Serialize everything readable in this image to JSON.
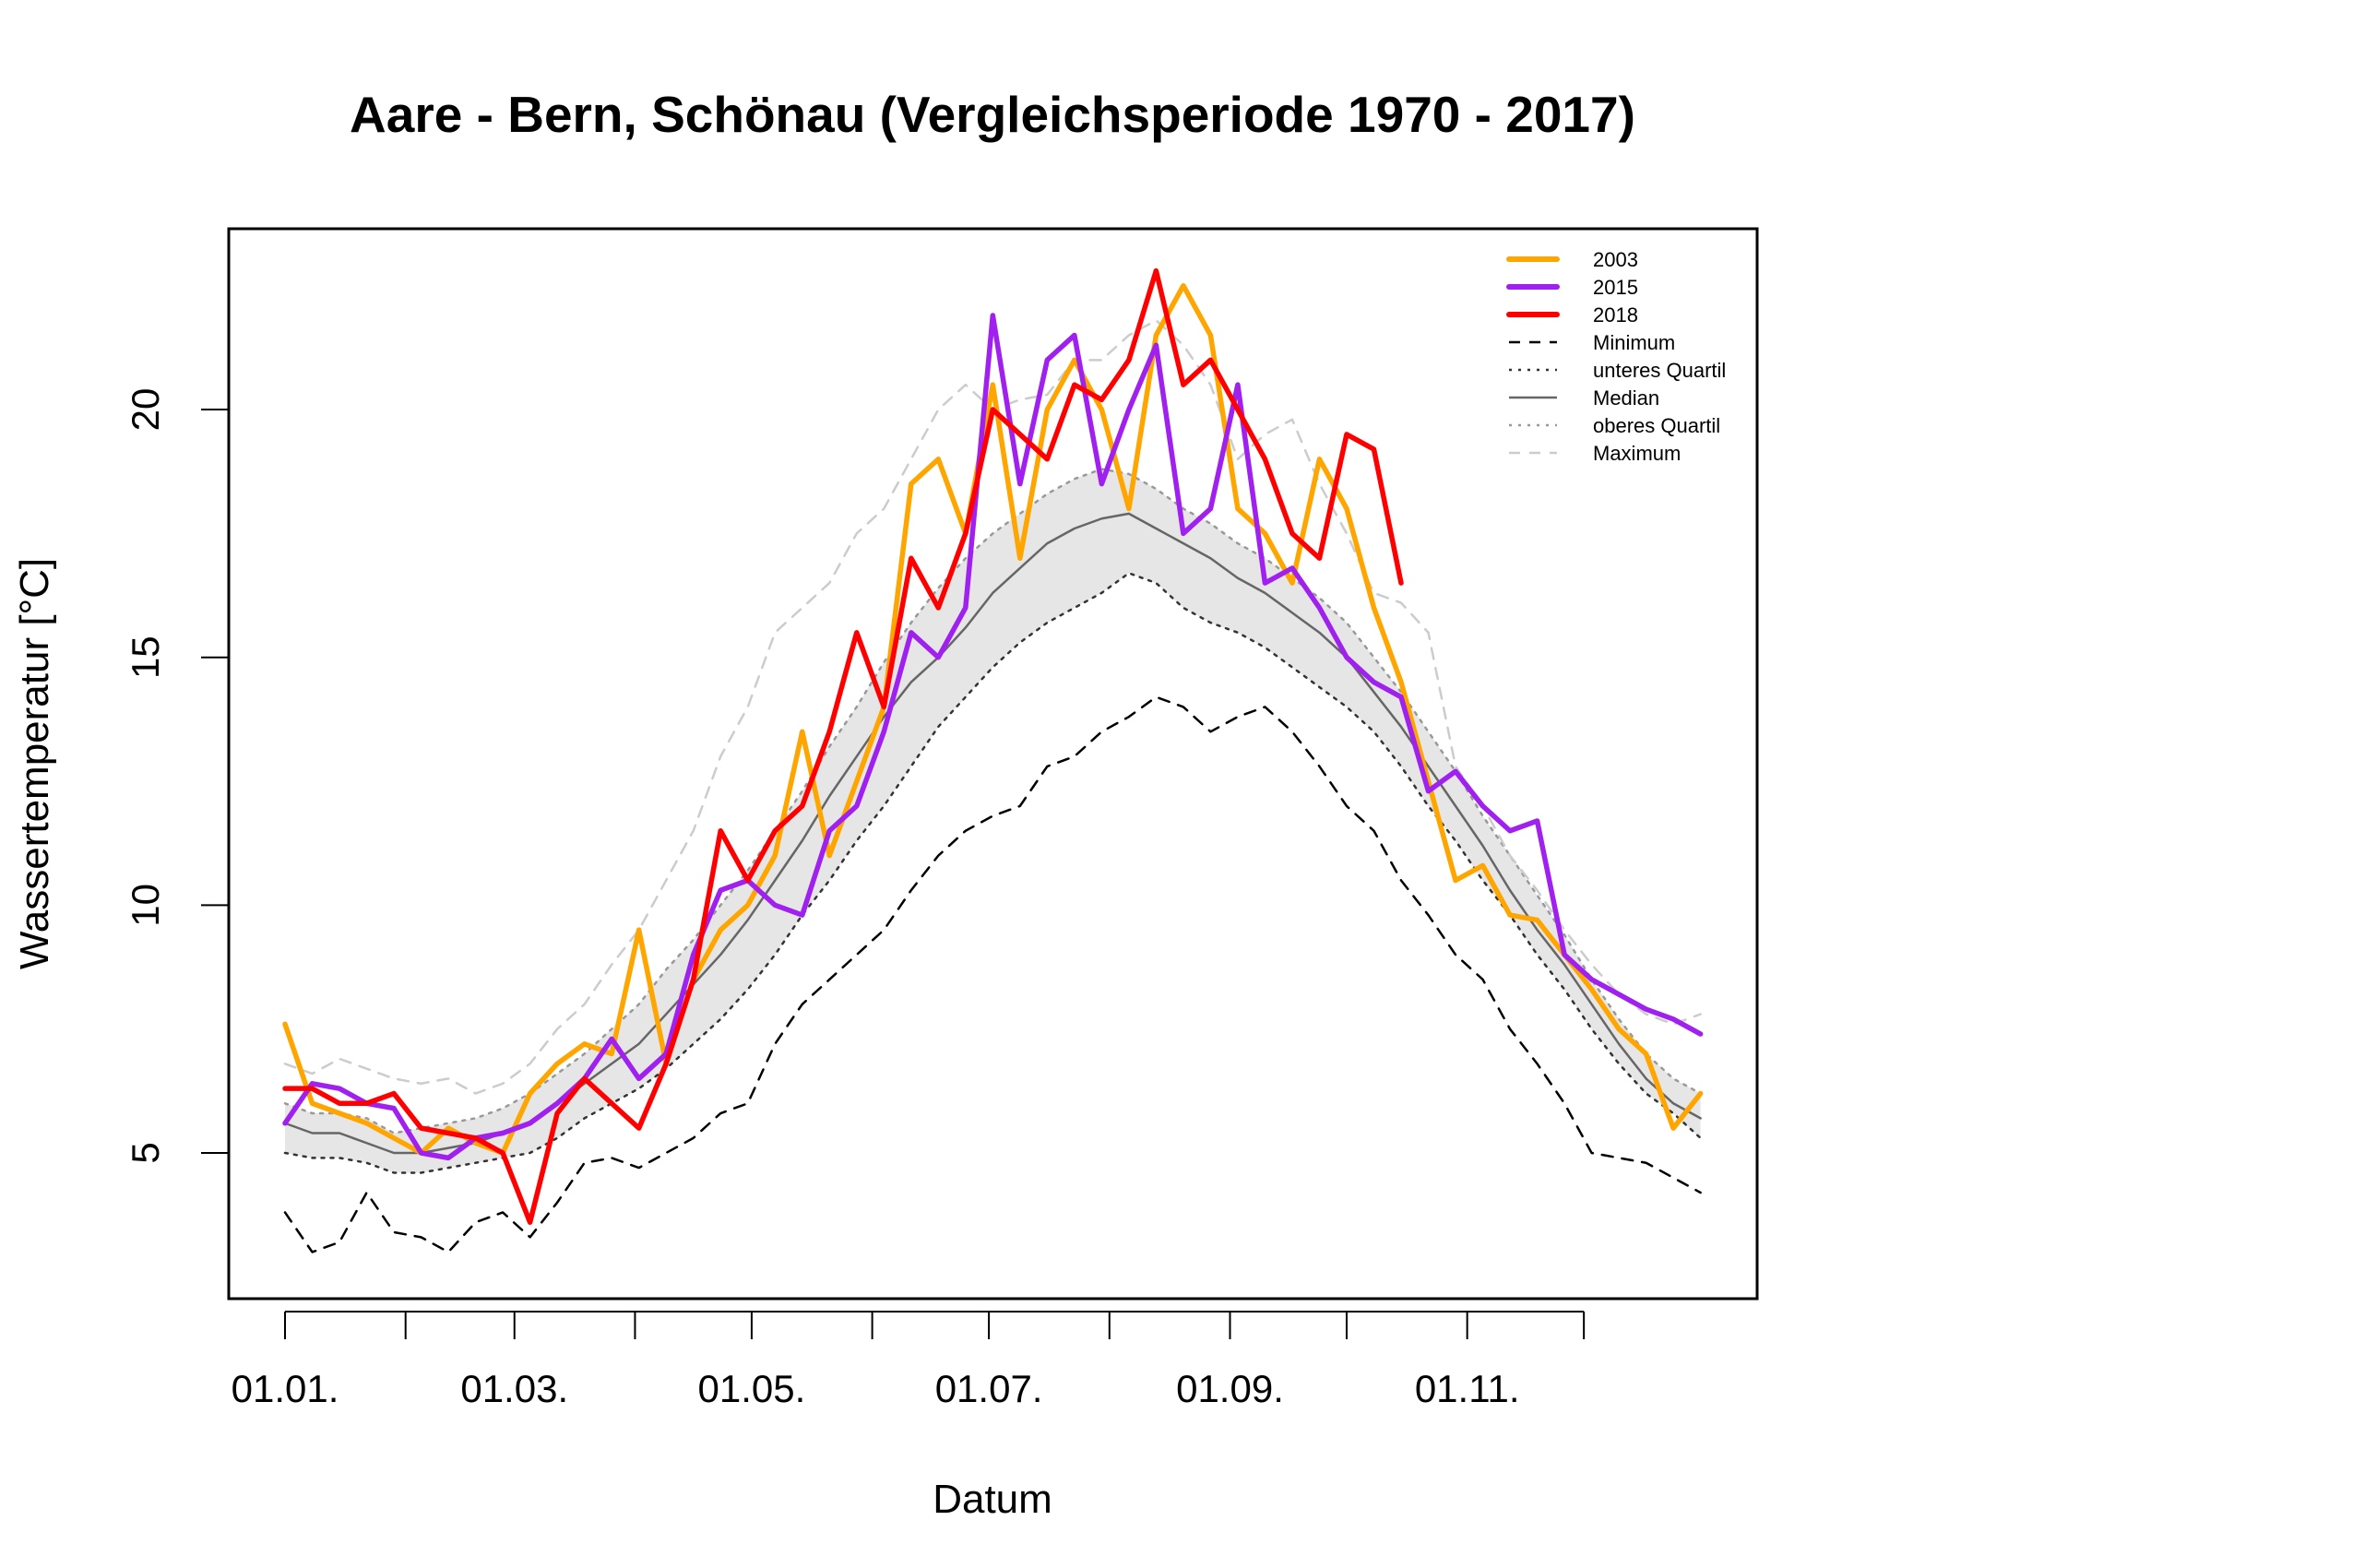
{
  "chart_data": {
    "type": "line",
    "title": "Aare - Bern, Schönau (Vergleichsperiode 1970 - 2017)",
    "xlabel": "Datum",
    "ylabel": "Wassertemperatur [°C]",
    "x_unit": "day_of_year",
    "xlim": [
      -15,
      380
    ],
    "ylim": [
      2.06,
      23.65
    ],
    "x_ticks": [
      0,
      31,
      59,
      90,
      120,
      151,
      181,
      212,
      243,
      273,
      304,
      334
    ],
    "x_tick_labels": [
      {
        "day": 0,
        "label": "01.01."
      },
      {
        "day": 59,
        "label": "01.03."
      },
      {
        "day": 120,
        "label": "01.05."
      },
      {
        "day": 181,
        "label": "01.07."
      },
      {
        "day": 243,
        "label": "01.09."
      },
      {
        "day": 304,
        "label": "01.11."
      }
    ],
    "y_ticks": [
      5,
      10,
      15,
      20
    ],
    "y_tick_labels": [
      "5",
      "10",
      "15",
      "20"
    ],
    "grid": false,
    "legend_position": "top-right",
    "legend": [
      {
        "label": "2003",
        "color": "#FFA500",
        "style": "solid-thick"
      },
      {
        "label": "2015",
        "color": "#A020F0",
        "style": "solid-thick"
      },
      {
        "label": "2018",
        "color": "#FF0000",
        "style": "solid-thick"
      },
      {
        "label": "Minimum",
        "color": "#000000",
        "style": "dashed"
      },
      {
        "label": "unteres Quartil",
        "color": "#333333",
        "style": "dotted"
      },
      {
        "label": "Median",
        "color": "#666666",
        "style": "solid"
      },
      {
        "label": "oberes Quartil",
        "color": "#999999",
        "style": "dotted"
      },
      {
        "label": "Maximum",
        "color": "#CCCCCC",
        "style": "dashed"
      }
    ],
    "band": {
      "label": "Interquartile range",
      "color": "#E6E6E6"
    },
    "x": [
      0,
      7,
      14,
      21,
      28,
      35,
      42,
      49,
      56,
      63,
      70,
      77,
      84,
      91,
      98,
      105,
      112,
      119,
      126,
      133,
      140,
      147,
      154,
      161,
      168,
      175,
      182,
      189,
      196,
      203,
      210,
      217,
      224,
      231,
      238,
      245,
      252,
      259,
      266,
      273,
      280,
      287,
      294,
      301,
      308,
      315,
      322,
      329,
      336,
      343,
      350,
      357,
      364
    ],
    "series": [
      {
        "name": "Minimum",
        "values": [
          3.8,
          3.0,
          3.2,
          4.2,
          3.4,
          3.3,
          3.0,
          3.6,
          3.8,
          3.3,
          4.0,
          4.8,
          4.9,
          4.7,
          5.0,
          5.3,
          5.8,
          6.0,
          7.2,
          8.0,
          8.5,
          9.0,
          9.5,
          10.3,
          11.0,
          11.5,
          11.8,
          12.0,
          12.8,
          13.0,
          13.5,
          13.8,
          14.2,
          14.0,
          13.5,
          13.8,
          14.0,
          13.5,
          12.8,
          12.0,
          11.5,
          10.5,
          9.8,
          9.0,
          8.5,
          7.5,
          6.8,
          6.0,
          5.0,
          4.9,
          4.8,
          4.5,
          4.2
        ]
      },
      {
        "name": "unteres Quartil",
        "values": [
          5.0,
          4.9,
          4.9,
          4.8,
          4.6,
          4.6,
          4.7,
          4.8,
          4.9,
          5.0,
          5.3,
          5.7,
          6.0,
          6.3,
          6.7,
          7.2,
          7.7,
          8.3,
          9.0,
          9.8,
          10.5,
          11.3,
          12.0,
          12.8,
          13.6,
          14.2,
          14.8,
          15.3,
          15.7,
          16.0,
          16.3,
          16.7,
          16.5,
          16.0,
          15.7,
          15.5,
          15.2,
          14.8,
          14.4,
          14.0,
          13.5,
          12.8,
          12.0,
          11.3,
          10.5,
          9.8,
          9.0,
          8.3,
          7.5,
          6.8,
          6.2,
          5.8,
          5.3
        ]
      },
      {
        "name": "Median",
        "values": [
          5.6,
          5.4,
          5.4,
          5.2,
          5.0,
          5.0,
          5.1,
          5.2,
          5.4,
          5.6,
          6.0,
          6.4,
          6.8,
          7.2,
          7.8,
          8.4,
          9.0,
          9.7,
          10.5,
          11.3,
          12.2,
          13.0,
          13.8,
          14.5,
          15.0,
          15.6,
          16.3,
          16.8,
          17.3,
          17.6,
          17.8,
          17.9,
          17.6,
          17.3,
          17.0,
          16.6,
          16.3,
          15.9,
          15.5,
          15.0,
          14.3,
          13.6,
          12.8,
          12.0,
          11.2,
          10.3,
          9.5,
          8.8,
          8.0,
          7.2,
          6.5,
          6.0,
          5.7
        ]
      },
      {
        "name": "oberes Quartil",
        "values": [
          6.0,
          5.8,
          5.8,
          5.7,
          5.4,
          5.5,
          5.6,
          5.7,
          5.9,
          6.2,
          6.6,
          7.0,
          7.5,
          8.0,
          8.7,
          9.3,
          10.0,
          10.7,
          11.5,
          12.3,
          13.2,
          14.0,
          14.9,
          15.7,
          16.4,
          17.0,
          17.5,
          17.9,
          18.3,
          18.6,
          18.8,
          18.7,
          18.4,
          18.0,
          17.7,
          17.3,
          17.0,
          16.6,
          16.2,
          15.7,
          15.0,
          14.3,
          13.5,
          12.7,
          11.8,
          11.0,
          10.2,
          9.4,
          8.5,
          7.7,
          7.0,
          6.5,
          6.2
        ]
      },
      {
        "name": "Maximum",
        "values": [
          6.8,
          6.6,
          6.9,
          6.7,
          6.5,
          6.4,
          6.5,
          6.2,
          6.4,
          6.8,
          7.5,
          8.0,
          8.8,
          9.5,
          10.5,
          11.5,
          13.0,
          14.0,
          15.5,
          16.0,
          16.5,
          17.5,
          18.0,
          19.0,
          20.0,
          20.5,
          20.0,
          20.2,
          20.3,
          21.0,
          21.0,
          21.5,
          21.8,
          21.3,
          20.5,
          19.0,
          19.5,
          19.8,
          18.5,
          17.5,
          16.3,
          16.1,
          15.5,
          12.8,
          12.0,
          11.0,
          10.3,
          9.5,
          8.8,
          8.2,
          7.8,
          7.6,
          7.8
        ]
      },
      {
        "name": "2003",
        "color": "#FFA500",
        "values": [
          7.6,
          6.0,
          5.8,
          5.6,
          5.3,
          5.0,
          5.5,
          5.2,
          5.0,
          6.2,
          6.8,
          7.2,
          7.0,
          9.5,
          6.8,
          8.5,
          9.5,
          10.0,
          11.0,
          13.5,
          11.0,
          12.5,
          14.0,
          18.5,
          19.0,
          17.5,
          20.5,
          17.0,
          20.0,
          21.0,
          20.0,
          18.0,
          21.5,
          22.5,
          21.5,
          18.0,
          17.5,
          16.5,
          19.0,
          18.0,
          16.0,
          14.5,
          12.5,
          10.5,
          10.8,
          9.8,
          9.7,
          9.0,
          8.3,
          7.5,
          7.0,
          5.5,
          6.2
        ]
      },
      {
        "name": "2015",
        "color": "#A020F0",
        "values": [
          5.6,
          6.4,
          6.3,
          6.0,
          5.9,
          5.0,
          4.9,
          5.3,
          5.4,
          5.6,
          6.0,
          6.5,
          7.3,
          6.5,
          7.0,
          9.0,
          10.3,
          10.5,
          10.0,
          9.8,
          11.5,
          12.0,
          13.5,
          15.5,
          15.0,
          16.0,
          21.9,
          18.5,
          21.0,
          21.5,
          18.5,
          20.0,
          21.3,
          17.5,
          18.0,
          20.5,
          16.5,
          16.8,
          16.0,
          15.0,
          14.5,
          14.2,
          12.3,
          12.7,
          12.0,
          11.5,
          11.7,
          9.0,
          8.5,
          8.2,
          7.9,
          7.7,
          7.4
        ]
      },
      {
        "name": "2018",
        "color": "#FF0000",
        "values": [
          6.3,
          6.3,
          6.0,
          6.0,
          6.2,
          5.5,
          5.4,
          5.3,
          5.0,
          3.6,
          5.8,
          6.5,
          6.0,
          5.5,
          6.8,
          8.5,
          11.5,
          10.5,
          11.5,
          12.0,
          13.5,
          15.5,
          14.0,
          17.0,
          16.0,
          17.5,
          20.0,
          19.5,
          19.0,
          20.5,
          20.2,
          21.0,
          22.8,
          20.5,
          21.0,
          20.0,
          19.0,
          17.5,
          17.0,
          19.5,
          19.2,
          16.5
        ]
      }
    ]
  }
}
